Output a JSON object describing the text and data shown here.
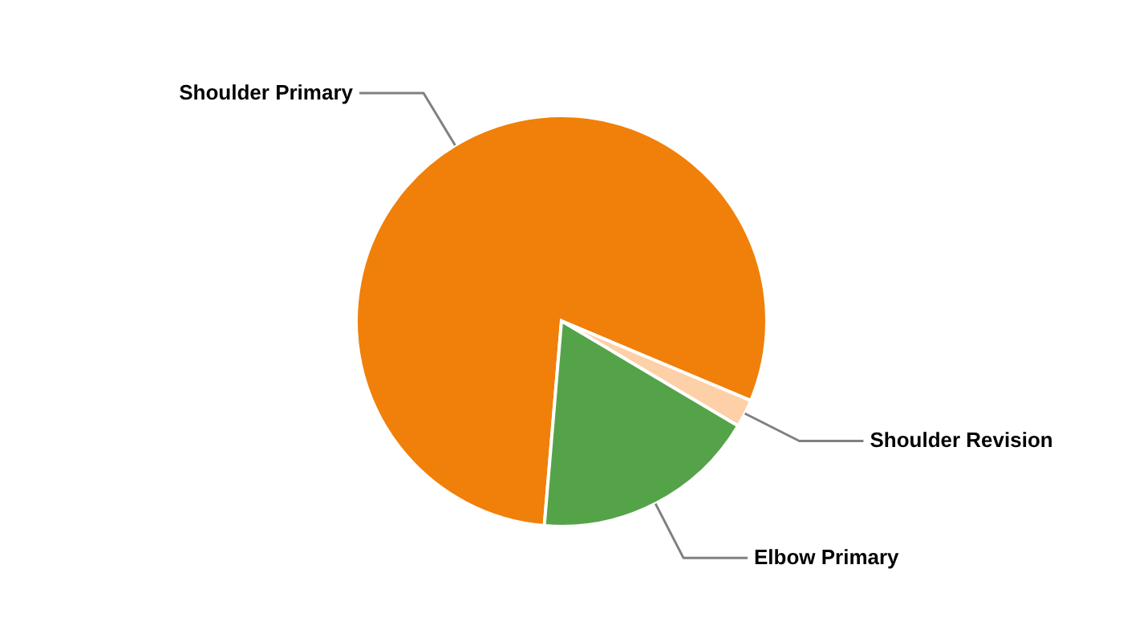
{
  "chart_data": {
    "type": "pie",
    "categories": [
      "Shoulder Primary",
      "Shoulder Revision",
      "Elbow Primary"
    ],
    "values": [
      80,
      2.2,
      17.8
    ],
    "colors": [
      "#f08009",
      "#fdd0a8",
      "#55a349"
    ]
  }
}
